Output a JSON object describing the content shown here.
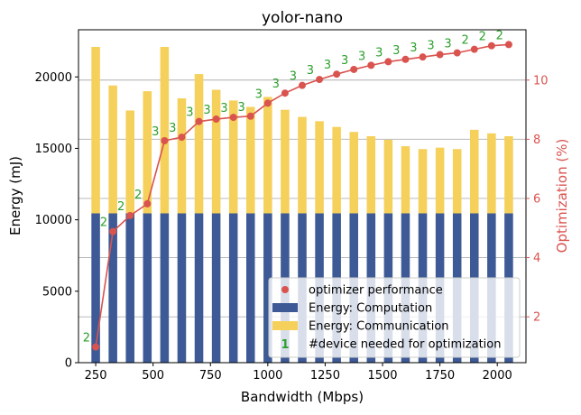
{
  "chart_data": {
    "type": "bar",
    "title": "yolor-nano",
    "xlabel": "Bandwidth (Mbps)",
    "ylabel": "Energy (mJ)",
    "y2label": "Optimization (%)",
    "x": [
      250,
      325,
      400,
      475,
      550,
      625,
      700,
      775,
      850,
      925,
      1000,
      1075,
      1150,
      1225,
      1300,
      1375,
      1450,
      1525,
      1600,
      1675,
      1750,
      1825,
      1900,
      1975,
      2050
    ],
    "xticks": [
      250,
      500,
      750,
      1000,
      1250,
      1500,
      1750,
      2000
    ],
    "xlim": [
      175,
      2125
    ],
    "ylim": [
      0,
      23300
    ],
    "yticks": [
      0,
      5000,
      10000,
      15000,
      20000
    ],
    "y2lim": [
      0.45,
      11.7
    ],
    "y2ticks": [
      2,
      4,
      6,
      8,
      10
    ],
    "stacked": true,
    "series": [
      {
        "name": "Energy: Computation",
        "kind": "bar",
        "color": "#3d5a96",
        "values": [
          10450,
          10450,
          10450,
          10450,
          10450,
          10450,
          10450,
          10450,
          10450,
          10450,
          10450,
          10450,
          10450,
          10450,
          10450,
          10450,
          10450,
          10450,
          10450,
          10450,
          10450,
          10450,
          10450,
          10450,
          10450
        ]
      },
      {
        "name": "Energy: Communication",
        "kind": "bar",
        "color": "#f5d05a",
        "values": [
          11650,
          8950,
          7200,
          8550,
          11650,
          8050,
          9750,
          8650,
          7900,
          7450,
          8150,
          7250,
          6750,
          6450,
          6050,
          5700,
          5400,
          5150,
          4700,
          4500,
          4600,
          4500,
          5850,
          5600,
          5400
        ]
      },
      {
        "name": "optimizer performance",
        "kind": "line",
        "axis": "right",
        "color": "#d9534f",
        "values": [
          0.98,
          4.88,
          5.42,
          5.82,
          7.95,
          8.07,
          8.6,
          8.68,
          8.74,
          8.78,
          9.22,
          9.56,
          9.82,
          10.02,
          10.2,
          10.36,
          10.5,
          10.62,
          10.7,
          10.78,
          10.86,
          10.92,
          11.04,
          11.16,
          11.2
        ]
      }
    ],
    "device_counts": [
      "2",
      "2",
      "2",
      "2",
      "3",
      "3",
      "3",
      "3",
      "3",
      "3",
      "3",
      "3",
      "3",
      "3",
      "3",
      "3",
      "3",
      "3",
      "3",
      "3",
      "3",
      "3",
      "2",
      "2",
      "2"
    ],
    "device_count_color": "#2ca02c",
    "legend": {
      "placement": "lower-right",
      "entries": [
        {
          "label": "optimizer performance",
          "marker": "dot"
        },
        {
          "label": "Energy: Computation",
          "marker": "bar"
        },
        {
          "label": "Energy: Communication",
          "marker": "bar"
        },
        {
          "label": "#device needed for optimization",
          "marker": "text",
          "marker_text": "1"
        }
      ]
    },
    "grid": {
      "axis": "right-y",
      "on": true
    }
  }
}
